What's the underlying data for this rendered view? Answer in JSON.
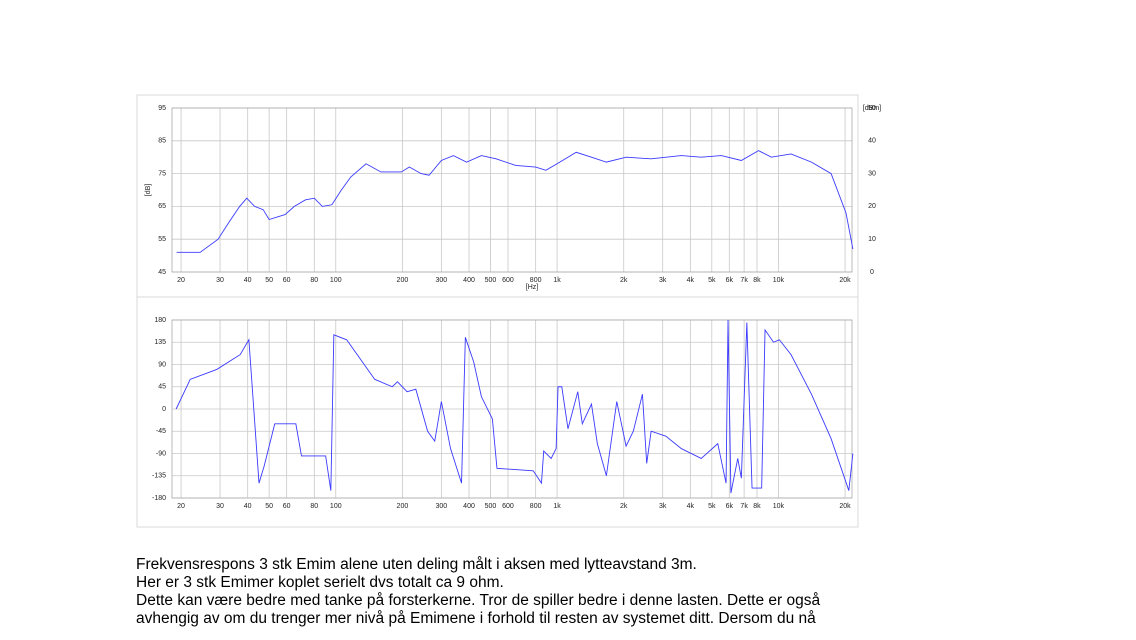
{
  "chart_data": [
    {
      "type": "line",
      "xlog": true,
      "grid": true,
      "xlabel": "[Hz]",
      "ylabel": "[dB]",
      "y2label": "[dBm]",
      "xlim": [
        18.2,
        21500
      ],
      "ylim": [
        45,
        95
      ],
      "y2lim": [
        0,
        50
      ],
      "yticks": [
        45,
        55,
        65,
        75,
        85,
        95
      ],
      "y2ticks": [
        0,
        10,
        20,
        30,
        40,
        50
      ],
      "xticks": [
        20,
        30,
        40,
        50,
        60,
        80,
        100,
        200,
        300,
        400,
        500,
        600,
        800,
        {
          "value": 1000,
          "label": "1k"
        },
        {
          "value": 2000,
          "label": "2k"
        },
        {
          "value": 3000,
          "label": "3k"
        },
        {
          "value": 4000,
          "label": "4k"
        },
        {
          "value": 5000,
          "label": "5k"
        },
        {
          "value": 6000,
          "label": "6k"
        },
        {
          "value": 7000,
          "label": "7k"
        },
        {
          "value": 8000,
          "label": "8k"
        },
        {
          "value": 10000,
          "label": "10k"
        },
        {
          "value": 20000,
          "label": "20k"
        }
      ],
      "x": [
        19.1,
        24.4,
        29.4,
        32.8,
        36.8,
        39.6,
        43,
        47,
        50,
        59,
        65,
        73,
        80,
        87,
        96,
        106,
        117,
        137,
        160,
        198,
        215,
        243,
        264,
        300,
        340,
        390,
        455,
        530,
        650,
        800,
        890,
        1000,
        1220,
        1430,
        1670,
        2050,
        2660,
        3640,
        4480,
        5520,
        6800,
        8130,
        9290,
        11400,
        14100,
        17300,
        20200,
        21700
      ],
      "series": [
        {
          "color": "#3a3aff",
          "values": [
            51,
            51,
            55,
            60,
            65,
            67.5,
            65,
            64,
            61,
            62.5,
            65,
            67,
            67.5,
            65,
            65.5,
            70,
            74,
            78,
            75.5,
            75.5,
            77,
            75,
            74.5,
            79,
            80.5,
            78.5,
            80.5,
            79.5,
            77.5,
            77,
            76,
            78,
            81.5,
            80,
            78.5,
            80,
            79.5,
            80.5,
            80,
            80.5,
            79,
            82,
            80,
            81,
            78.5,
            75,
            63,
            52
          ]
        }
      ]
    },
    {
      "type": "line",
      "xlog": true,
      "grid": true,
      "xlim": [
        18.2,
        21500
      ],
      "ylim": [
        -180,
        180
      ],
      "yticks": [
        -180,
        -135,
        -90,
        -45,
        0,
        45,
        90,
        135,
        180
      ],
      "xticks": [
        20,
        30,
        40,
        50,
        60,
        80,
        100,
        200,
        300,
        400,
        500,
        600,
        800,
        {
          "value": 1000,
          "label": "1k"
        },
        {
          "value": 2000,
          "label": "2k"
        },
        {
          "value": 3000,
          "label": "3k"
        },
        {
          "value": 4000,
          "label": "4k"
        },
        {
          "value": 5000,
          "label": "5k"
        },
        {
          "value": 6000,
          "label": "6k"
        },
        {
          "value": 7000,
          "label": "7k"
        },
        {
          "value": 8000,
          "label": "8k"
        },
        {
          "value": 10000,
          "label": "10k"
        },
        {
          "value": 20000,
          "label": "20k"
        }
      ],
      "x": [
        19,
        22,
        29,
        37,
        40.5,
        45,
        47.5,
        53,
        66,
        70,
        90,
        95,
        98,
        112,
        125,
        150,
        180,
        190,
        210,
        230,
        260,
        280,
        300,
        330,
        370,
        385,
        420,
        455,
        510,
        535,
        780,
        850,
        870,
        940,
        990,
        1010,
        1050,
        1120,
        1240,
        1300,
        1430,
        1520,
        1670,
        1860,
        2050,
        2210,
        2430,
        2540,
        2660,
        3100,
        3640,
        4480,
        5320,
        5800,
        5920,
        6100,
        6550,
        6800,
        7200,
        7600,
        8400,
        8700,
        9500,
        10100,
        11400,
        14100,
        17300,
        20800,
        21700
      ],
      "series": [
        {
          "color": "#3a3aff",
          "values": [
            0,
            60,
            80,
            110,
            140,
            -150,
            -115,
            -30,
            -30,
            -95,
            -95,
            -165,
            150,
            140,
            110,
            60,
            45,
            55,
            35,
            40,
            -45,
            -65,
            15,
            -80,
            -150,
            145,
            95,
            25,
            -20,
            -120,
            -125,
            -150,
            -85,
            -100,
            -80,
            45,
            45,
            -40,
            35,
            -30,
            10,
            -70,
            -135,
            15,
            -75,
            -45,
            30,
            -110,
            -45,
            -55,
            -80,
            -100,
            -70,
            -150,
            180,
            -170,
            -100,
            -140,
            175,
            -160,
            -160,
            160,
            135,
            140,
            110,
            30,
            -60,
            -165,
            -90
          ]
        }
      ]
    }
  ],
  "text": [
    "Frekvensrespons 3 stk Emim alene uten deling målt i aksen med lytteavstand 3m.",
    "Her er 3 stk Emimer koplet serielt dvs totalt ca 9 ohm.",
    "Dette kan være bedre med tanke på forsterkerne. Tror de spiller bedre i denne lasten. Dette er også",
    "avhengig av om du trenger mer nivå på Emimene i forhold til resten av systemet ditt. Dersom du nå"
  ]
}
